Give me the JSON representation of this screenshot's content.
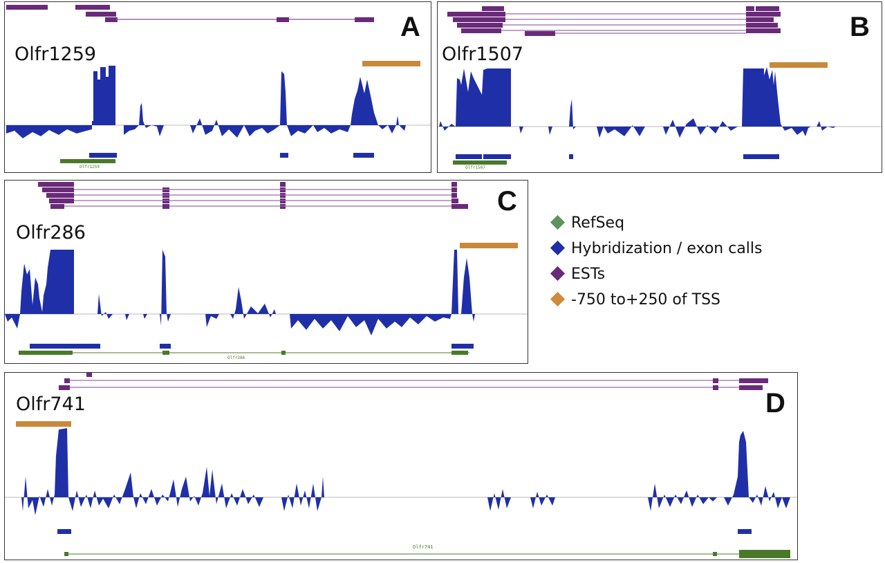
{
  "colors": {
    "refseq": "#4a7a28",
    "hybridization": "#1f2fa8",
    "est": "#6a2a7a",
    "tss": "#c8893a",
    "baseline": "#b8b8b8"
  },
  "panels": [
    {
      "letter": "A",
      "gene": "Olfr1259",
      "refseq_label": "Olfr1259"
    },
    {
      "letter": "B",
      "gene": "Olfr1507",
      "refseq_label": "Olfr1507"
    },
    {
      "letter": "C",
      "gene": "Olfr286",
      "refseq_label": "Olfr286"
    },
    {
      "letter": "D",
      "gene": "Olfr741",
      "refseq_label": "Olfr741"
    }
  ],
  "legend": [
    {
      "label": "RefSeq",
      "color": "#5e9460"
    },
    {
      "label": "Hybridization / exon calls",
      "color": "#1f2fa8"
    },
    {
      "label": "ESTs",
      "color": "#6a2a7a"
    },
    {
      "label": "-750 to+250 of TSS",
      "color": "#d08a3a"
    }
  ]
}
